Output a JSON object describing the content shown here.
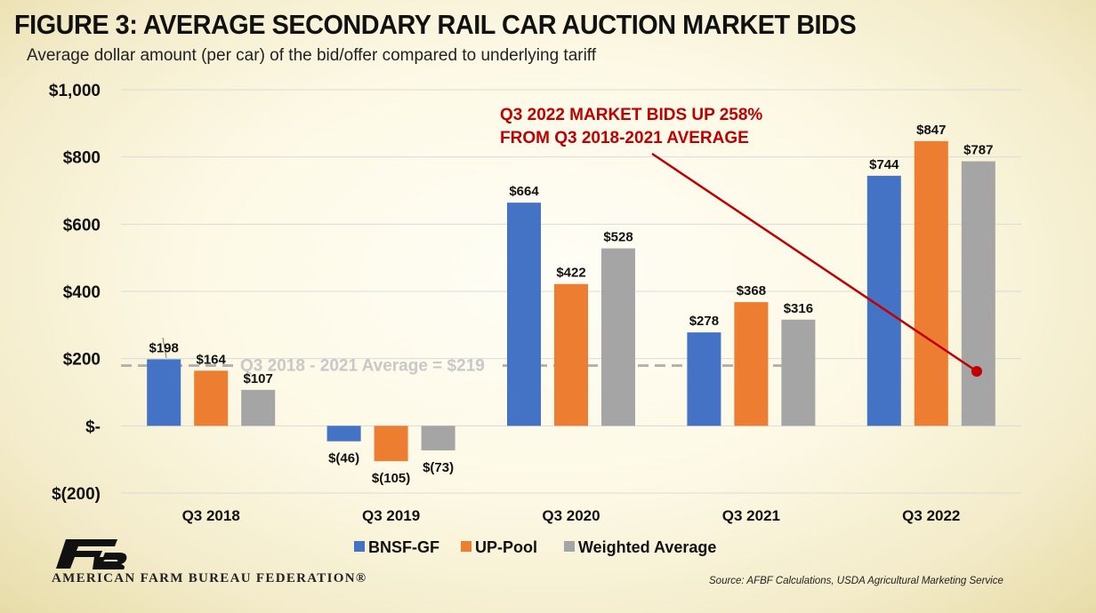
{
  "title": "FIGURE 3: AVERAGE SECONDARY RAIL CAR AUCTION MARKET BIDS",
  "subtitle": "Average dollar amount (per car) of the bid/offer compared to underlying tariff",
  "chart_data": {
    "type": "bar",
    "categories": [
      "Q3 2018",
      "Q3 2019",
      "Q3 2020",
      "Q3 2021",
      "Q3 2022"
    ],
    "series": [
      {
        "name": "BNSF-GF",
        "color": "#4472c4",
        "values": [
          198,
          -46,
          664,
          278,
          744
        ],
        "labels": [
          "$198",
          "$(46)",
          "$664",
          "$278",
          "$744"
        ]
      },
      {
        "name": "UP-Pool",
        "color": "#ed7d31",
        "values": [
          164,
          -105,
          422,
          368,
          847
        ],
        "labels": [
          "$164",
          "$(105)",
          "$422",
          "$368",
          "$847"
        ]
      },
      {
        "name": "Weighted Average",
        "color": "#a5a5a5",
        "values": [
          107,
          -73,
          528,
          316,
          787
        ],
        "labels": [
          "$107",
          "$(73)",
          "$528",
          "$316",
          "$787"
        ]
      }
    ],
    "ylim": [
      -200,
      1000
    ],
    "yticks": [
      -200,
      0,
      200,
      400,
      600,
      800,
      1000
    ],
    "ytick_labels": [
      "$(200)",
      "$-",
      "$200",
      "$400",
      "$600",
      "$800",
      "$1,000"
    ],
    "grid": true,
    "legend": "bottom",
    "average_line": {
      "value": 219,
      "label": "Q3 2018 - 2021 Average = $219"
    },
    "annotation": {
      "lines": [
        "Q3 2022 MARKET BIDS UP 258%",
        "FROM Q3 2018-2021 AVERAGE"
      ],
      "color": "#c00000"
    }
  },
  "footer": {
    "organization": "AMERICAN FARM BUREAU FEDERATION®",
    "source": "Source: AFBF Calculations, USDA Agricultural Marketing Service",
    "logo_icon": "afbf-logo-icon"
  }
}
